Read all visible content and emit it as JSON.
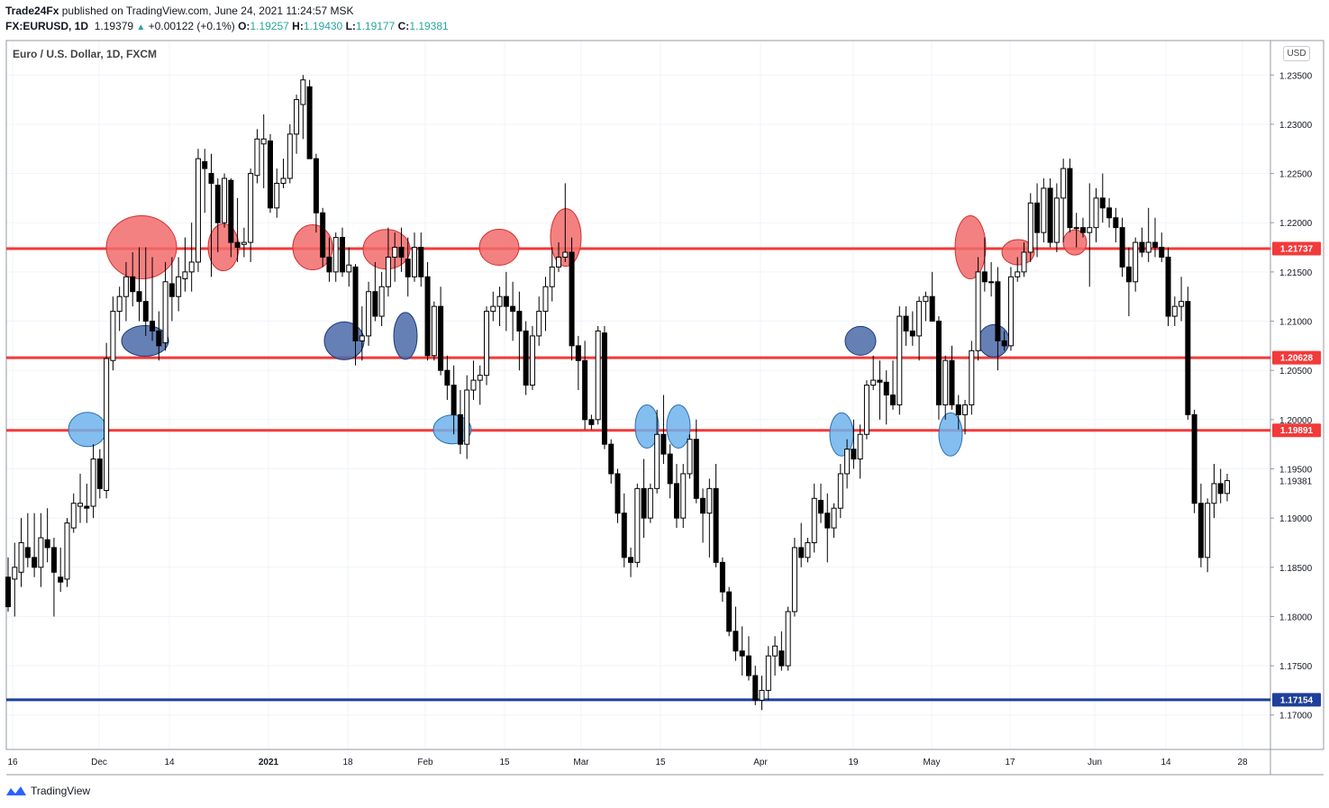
{
  "header": {
    "publisher": "Trade24Fx",
    "published_text": "published on TradingView.com, June 24, 2021 11:24:57 MSK",
    "symbol": "FX:EURUSD, 1D",
    "last_price": "1.19379",
    "change": "+0.00122 (+0.1%)",
    "o_label": "O:",
    "o_value": "1.19257",
    "h_label": "H:",
    "h_value": "1.19430",
    "l_label": "L:",
    "l_value": "1.19177",
    "c_label": "C:",
    "c_value": "1.19381"
  },
  "chart_title": "Euro / U.S. Dollar, 1D, FXCM",
  "currency_badge": "USD",
  "footer_brand": "TradingView",
  "colors": {
    "resistance": "#f23a3a",
    "support": "#1e3f9a",
    "red_marker": "#f26b6b",
    "dark_blue_marker": "#4a6aa8",
    "light_blue_marker": "#6db3ec"
  },
  "chart_data": {
    "type": "candlestick",
    "title": "Euro / U.S. Dollar, 1D, FXCM",
    "ylim": [
      1.1665,
      1.2385
    ],
    "y_ticks": [
      "1.23500",
      "1.23000",
      "1.22500",
      "1.22000",
      "1.21500",
      "1.21000",
      "1.20500",
      "1.20000",
      "1.19500",
      "1.19000",
      "1.18500",
      "1.18000",
      "1.17500",
      "1.17000"
    ],
    "x_ticks": [
      "16",
      "Dec",
      "14",
      "2021",
      "18",
      "Feb",
      "15",
      "Mar",
      "15",
      "Apr",
      "19",
      "May",
      "17",
      "Jun",
      "14",
      "28"
    ],
    "horizontal_lines": [
      {
        "value": 1.21737,
        "label": "1.21737",
        "color": "#f23a3a"
      },
      {
        "value": 1.20628,
        "label": "1.20628",
        "color": "#f23a3a"
      },
      {
        "value": 1.19891,
        "label": "1.19891",
        "color": "#f23a3a"
      },
      {
        "value": 1.17154,
        "label": "1.17154",
        "color": "#1e3f9a"
      }
    ],
    "last_price_label": "1.19381",
    "candles": [
      [
        1.184,
        1.186,
        1.1805,
        1.181
      ],
      [
        1.1838,
        1.1875,
        1.18,
        1.185
      ],
      [
        1.1845,
        1.19,
        1.183,
        1.1875
      ],
      [
        1.187,
        1.1905,
        1.185,
        1.186
      ],
      [
        1.186,
        1.1905,
        1.184,
        1.185
      ],
      [
        1.185,
        1.1905,
        1.183,
        1.188
      ],
      [
        1.1878,
        1.191,
        1.1855,
        1.187
      ],
      [
        1.187,
        1.188,
        1.18,
        1.1845
      ],
      [
        1.184,
        1.187,
        1.1825,
        1.1835
      ],
      [
        1.1838,
        1.19,
        1.183,
        1.1895
      ],
      [
        1.189,
        1.1925,
        1.1885,
        1.1915
      ],
      [
        1.1912,
        1.1945,
        1.1895,
        1.1915
      ],
      [
        1.1912,
        1.1935,
        1.1895,
        1.191
      ],
      [
        1.1912,
        1.1975,
        1.19,
        1.196
      ],
      [
        1.196,
        1.197,
        1.192,
        1.193
      ],
      [
        1.1928,
        1.2078,
        1.192,
        1.2062
      ],
      [
        1.206,
        1.2125,
        1.205,
        1.211
      ],
      [
        1.211,
        1.2135,
        1.209,
        1.2125
      ],
      [
        1.2125,
        1.216,
        1.21,
        1.2145
      ],
      [
        1.2145,
        1.217,
        1.2115,
        1.213
      ],
      [
        1.213,
        1.2175,
        1.21,
        1.212
      ],
      [
        1.212,
        1.2175,
        1.2085,
        1.21
      ],
      [
        1.21,
        1.2165,
        1.208,
        1.209
      ],
      [
        1.209,
        1.211,
        1.206,
        1.2075
      ],
      [
        1.2078,
        1.216,
        1.207,
        1.214
      ],
      [
        1.2138,
        1.2165,
        1.21,
        1.2125
      ],
      [
        1.2125,
        1.2165,
        1.211,
        1.2145
      ],
      [
        1.2143,
        1.2185,
        1.213,
        1.215
      ],
      [
        1.215,
        1.22,
        1.213,
        1.216
      ],
      [
        1.216,
        1.2275,
        1.215,
        1.2265
      ],
      [
        1.2262,
        1.2275,
        1.221,
        1.2255
      ],
      [
        1.225,
        1.227,
        1.2145,
        1.224
      ],
      [
        1.2238,
        1.2245,
        1.217,
        1.22
      ],
      [
        1.22,
        1.225,
        1.2195,
        1.2245
      ],
      [
        1.2243,
        1.2245,
        1.2165,
        1.218
      ],
      [
        1.218,
        1.2225,
        1.216,
        1.2175
      ],
      [
        1.2178,
        1.2195,
        1.2165,
        1.218
      ],
      [
        1.218,
        1.2255,
        1.216,
        1.225
      ],
      [
        1.2248,
        1.2295,
        1.224,
        1.2285
      ],
      [
        1.228,
        1.231,
        1.2235,
        1.2285
      ],
      [
        1.2283,
        1.229,
        1.221,
        1.2215
      ],
      [
        1.2215,
        1.2255,
        1.2205,
        1.224
      ],
      [
        1.224,
        1.2265,
        1.2235,
        1.2245
      ],
      [
        1.2245,
        1.23,
        1.224,
        1.229
      ],
      [
        1.229,
        1.233,
        1.227,
        1.2325
      ],
      [
        1.232,
        1.235,
        1.2285,
        1.2345
      ],
      [
        1.2338,
        1.2345,
        1.2265,
        1.2265
      ],
      [
        1.2265,
        1.227,
        1.219,
        1.221
      ],
      [
        1.221,
        1.2215,
        1.2155,
        1.2165
      ],
      [
        1.2165,
        1.2185,
        1.214,
        1.215
      ],
      [
        1.215,
        1.219,
        1.214,
        1.2185
      ],
      [
        1.2185,
        1.2195,
        1.2145,
        1.215
      ],
      [
        1.215,
        1.2175,
        1.2135,
        1.2157
      ],
      [
        1.2155,
        1.2158,
        1.2055,
        1.208
      ],
      [
        1.208,
        1.2115,
        1.206,
        1.2085
      ],
      [
        1.2085,
        1.214,
        1.2075,
        1.213
      ],
      [
        1.213,
        1.216,
        1.21,
        1.2105
      ],
      [
        1.2105,
        1.215,
        1.2095,
        1.2135
      ],
      [
        1.2135,
        1.2195,
        1.2125,
        1.2165
      ],
      [
        1.2165,
        1.219,
        1.214,
        1.2175
      ],
      [
        1.2175,
        1.2195,
        1.215,
        1.2165
      ],
      [
        1.2163,
        1.2185,
        1.2125,
        1.2145
      ],
      [
        1.2145,
        1.219,
        1.214,
        1.2175
      ],
      [
        1.2175,
        1.219,
        1.2135,
        1.2145
      ],
      [
        1.2145,
        1.216,
        1.206,
        1.2065
      ],
      [
        1.2065,
        1.212,
        1.206,
        1.2115
      ],
      [
        1.2115,
        1.2135,
        1.2045,
        1.205
      ],
      [
        1.205,
        1.2065,
        1.202,
        1.2035
      ],
      [
        1.2035,
        1.2055,
        1.1985,
        1.2005
      ],
      [
        1.2005,
        1.203,
        1.1965,
        1.1975
      ],
      [
        1.1975,
        1.2045,
        1.196,
        1.203
      ],
      [
        1.203,
        1.206,
        1.202,
        1.204
      ],
      [
        1.204,
        1.2055,
        1.2015,
        1.2045
      ],
      [
        1.2045,
        1.2115,
        1.2035,
        1.211
      ],
      [
        1.211,
        1.213,
        1.21,
        1.2115
      ],
      [
        1.2115,
        1.2135,
        1.2095,
        1.2125
      ],
      [
        1.2125,
        1.215,
        1.209,
        1.2115
      ],
      [
        1.2115,
        1.214,
        1.208,
        1.211
      ],
      [
        1.211,
        1.213,
        1.205,
        1.209
      ],
      [
        1.209,
        1.21,
        1.2025,
        1.2035
      ],
      [
        1.2035,
        1.2095,
        1.203,
        1.2085
      ],
      [
        1.2085,
        1.2125,
        1.2075,
        1.211
      ],
      [
        1.211,
        1.2145,
        1.209,
        1.2135
      ],
      [
        1.2135,
        1.2175,
        1.212,
        1.2155
      ],
      [
        1.2155,
        1.218,
        1.215,
        1.2165
      ],
      [
        1.2165,
        1.224,
        1.216,
        1.217
      ],
      [
        1.217,
        1.2185,
        1.206,
        1.2075
      ],
      [
        1.2075,
        1.2085,
        1.203,
        1.206
      ],
      [
        1.206,
        1.208,
        1.199,
        1.2
      ],
      [
        1.2,
        1.2005,
        1.199,
        1.1995
      ],
      [
        1.2,
        1.2095,
        1.1995,
        1.209
      ],
      [
        1.2088,
        1.2095,
        1.197,
        1.1975
      ],
      [
        1.1975,
        1.198,
        1.1935,
        1.1945
      ],
      [
        1.1945,
        1.195,
        1.1895,
        1.1905
      ],
      [
        1.1905,
        1.1925,
        1.185,
        1.186
      ],
      [
        1.186,
        1.187,
        1.184,
        1.1855
      ],
      [
        1.1855,
        1.1935,
        1.185,
        1.193
      ],
      [
        1.193,
        1.196,
        1.188,
        1.19
      ],
      [
        1.19,
        1.1935,
        1.1895,
        1.193
      ],
      [
        1.193,
        1.201,
        1.1925,
        1.1985
      ],
      [
        1.1985,
        1.2025,
        1.1955,
        1.1965
      ],
      [
        1.1965,
        1.1975,
        1.192,
        1.1935
      ],
      [
        1.1935,
        1.1955,
        1.189,
        1.19
      ],
      [
        1.19,
        1.1955,
        1.189,
        1.1945
      ],
      [
        1.1945,
        1.1985,
        1.194,
        1.198
      ],
      [
        1.198,
        1.2,
        1.1915,
        1.192
      ],
      [
        1.192,
        1.193,
        1.1875,
        1.1905
      ],
      [
        1.1905,
        1.194,
        1.186,
        1.193
      ],
      [
        1.193,
        1.1955,
        1.185,
        1.1855
      ],
      [
        1.1855,
        1.186,
        1.1815,
        1.1825
      ],
      [
        1.1825,
        1.183,
        1.178,
        1.1785
      ],
      [
        1.1785,
        1.181,
        1.1755,
        1.1765
      ],
      [
        1.1765,
        1.179,
        1.174,
        1.176
      ],
      [
        1.176,
        1.178,
        1.1735,
        1.174
      ],
      [
        1.174,
        1.175,
        1.171,
        1.1715
      ],
      [
        1.1715,
        1.174,
        1.1705,
        1.1725
      ],
      [
        1.1725,
        1.177,
        1.1715,
        1.176
      ],
      [
        1.176,
        1.178,
        1.174,
        1.177
      ],
      [
        1.1765,
        1.1785,
        1.1745,
        1.175
      ],
      [
        1.175,
        1.181,
        1.1745,
        1.1805
      ],
      [
        1.1805,
        1.188,
        1.18,
        1.187
      ],
      [
        1.187,
        1.1895,
        1.185,
        1.186
      ],
      [
        1.186,
        1.188,
        1.1855,
        1.1875
      ],
      [
        1.1875,
        1.1935,
        1.1865,
        1.192
      ],
      [
        1.1918,
        1.1935,
        1.1895,
        1.1905
      ],
      [
        1.1905,
        1.1925,
        1.1855,
        1.189
      ],
      [
        1.189,
        1.1915,
        1.188,
        1.191
      ],
      [
        1.191,
        1.1955,
        1.19,
        1.1945
      ],
      [
        1.1945,
        1.198,
        1.193,
        1.197
      ],
      [
        1.197,
        1.2,
        1.195,
        1.196
      ],
      [
        1.196,
        1.1995,
        1.194,
        1.1985
      ],
      [
        1.1985,
        1.204,
        1.198,
        1.2035
      ],
      [
        1.2035,
        1.2065,
        1.203,
        1.204
      ],
      [
        1.204,
        1.206,
        1.2,
        1.2038
      ],
      [
        1.2038,
        1.205,
        1.1995,
        1.2025
      ],
      [
        1.2025,
        1.206,
        1.201,
        1.2015
      ],
      [
        1.2015,
        1.2115,
        1.2005,
        1.2105
      ],
      [
        1.2105,
        1.2115,
        1.2075,
        1.209
      ],
      [
        1.209,
        1.211,
        1.2075,
        1.2085
      ],
      [
        1.2085,
        1.2125,
        1.206,
        1.212
      ],
      [
        1.212,
        1.213,
        1.21,
        1.2125
      ],
      [
        1.2125,
        1.215,
        1.21,
        1.21
      ],
      [
        1.21,
        1.2105,
        1.2,
        1.2015
      ],
      [
        1.2015,
        1.2065,
        1.2,
        1.206
      ],
      [
        1.206,
        1.2075,
        1.201,
        1.2015
      ],
      [
        1.2015,
        1.2025,
        1.199,
        1.2005
      ],
      [
        1.2005,
        1.202,
        1.1985,
        1.2015
      ],
      [
        1.2015,
        1.208,
        1.2005,
        1.207
      ],
      [
        1.207,
        1.2165,
        1.206,
        1.215
      ],
      [
        1.215,
        1.2185,
        1.213,
        1.214
      ],
      [
        1.214,
        1.216,
        1.2125,
        1.214
      ],
      [
        1.214,
        1.2155,
        1.205,
        1.208
      ],
      [
        1.208,
        1.209,
        1.207,
        1.2075
      ],
      [
        1.2075,
        1.2155,
        1.207,
        1.2145
      ],
      [
        1.2145,
        1.2165,
        1.214,
        1.215
      ],
      [
        1.215,
        1.218,
        1.2145,
        1.217
      ],
      [
        1.217,
        1.223,
        1.216,
        1.222
      ],
      [
        1.222,
        1.224,
        1.2165,
        1.219
      ],
      [
        1.219,
        1.2245,
        1.218,
        1.2235
      ],
      [
        1.2235,
        1.2245,
        1.2175,
        1.218
      ],
      [
        1.218,
        1.224,
        1.217,
        1.2225
      ],
      [
        1.2225,
        1.2265,
        1.218,
        1.2255
      ],
      [
        1.2255,
        1.2265,
        1.219,
        1.2195
      ],
      [
        1.2195,
        1.221,
        1.2175,
        1.2195
      ],
      [
        1.2195,
        1.2205,
        1.2185,
        1.219
      ],
      [
        1.219,
        1.224,
        1.2135,
        1.2195
      ],
      [
        1.2195,
        1.2235,
        1.218,
        1.2225
      ],
      [
        1.2225,
        1.225,
        1.22,
        1.2215
      ],
      [
        1.2215,
        1.2225,
        1.2195,
        1.2205
      ],
      [
        1.2205,
        1.2215,
        1.218,
        1.2195
      ],
      [
        1.2195,
        1.2205,
        1.2145,
        1.2155
      ],
      [
        1.2155,
        1.2175,
        1.2105,
        1.214
      ],
      [
        1.214,
        1.2185,
        1.213,
        1.218
      ],
      [
        1.218,
        1.2195,
        1.2165,
        1.217
      ],
      [
        1.217,
        1.2215,
        1.216,
        1.218
      ],
      [
        1.218,
        1.2205,
        1.2165,
        1.2175
      ],
      [
        1.2175,
        1.219,
        1.216,
        1.2165
      ],
      [
        1.2165,
        1.2175,
        1.2095,
        1.2105
      ],
      [
        1.2105,
        1.2125,
        1.2095,
        1.2115
      ],
      [
        1.2115,
        1.2145,
        1.21,
        1.212
      ],
      [
        1.212,
        1.2135,
        1.2,
        1.2005
      ],
      [
        1.2005,
        1.201,
        1.1905,
        1.1915
      ],
      [
        1.1915,
        1.1935,
        1.185,
        1.186
      ],
      [
        1.186,
        1.192,
        1.1845,
        1.1915
      ],
      [
        1.1915,
        1.1955,
        1.19,
        1.1935
      ],
      [
        1.1935,
        1.195,
        1.1915,
        1.1925
      ],
      [
        1.1925,
        1.1945,
        1.1917,
        1.1938
      ]
    ]
  }
}
